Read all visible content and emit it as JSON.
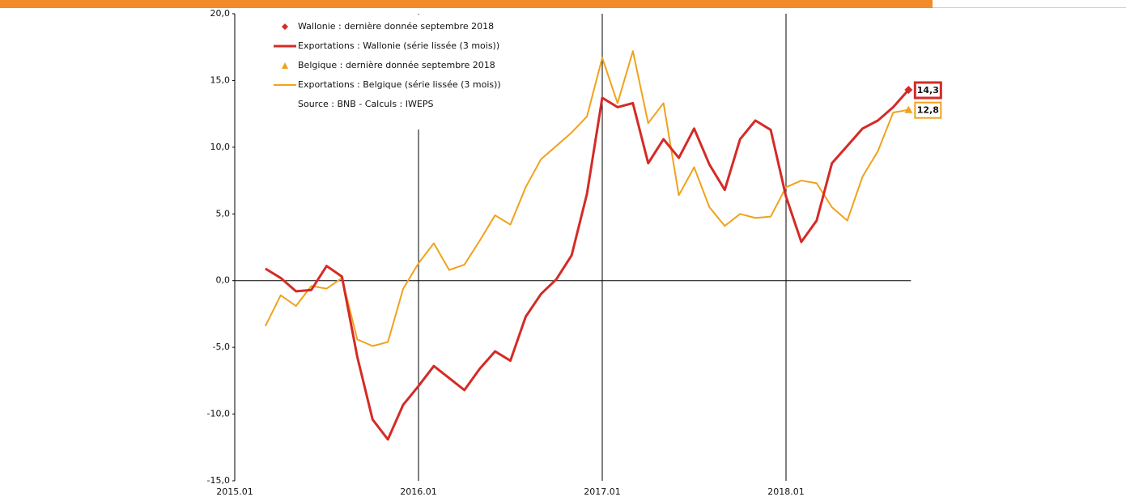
{
  "chart_data": {
    "type": "line",
    "categories": [
      "2015.01",
      null,
      null,
      null,
      null,
      null,
      null,
      null,
      null,
      null,
      null,
      null,
      "2016.01",
      null,
      null,
      null,
      null,
      null,
      null,
      null,
      null,
      null,
      null,
      null,
      "2017.01",
      null,
      null,
      null,
      null,
      null,
      null,
      null,
      null,
      null,
      null,
      null,
      "2018.01",
      null,
      null,
      null,
      null,
      null,
      null,
      null,
      null
    ],
    "ylim": [
      -15,
      20
    ],
    "yticks": [
      {
        "value": -15,
        "label": "-15,0"
      },
      {
        "value": -10,
        "label": "-10,0"
      },
      {
        "value": -5,
        "label": "-5,0"
      },
      {
        "value": 0,
        "label": "0,0"
      },
      {
        "value": 5,
        "label": "5,0"
      },
      {
        "value": 10,
        "label": "10,0"
      },
      {
        "value": 15,
        "label": "15,0"
      },
      {
        "value": 20,
        "label": "20,0"
      }
    ],
    "source": "Source : BNB - Calculs : IWEPS",
    "series": [
      {
        "name": "Wallonie : dernière donnée septembre 2018",
        "color": "#d42b27",
        "marker": "diamond",
        "values": [
          null,
          null,
          null,
          null,
          null,
          null,
          null,
          null,
          null,
          null,
          null,
          null,
          null,
          null,
          null,
          null,
          null,
          null,
          null,
          null,
          null,
          null,
          null,
          null,
          null,
          null,
          null,
          null,
          null,
          null,
          null,
          null,
          null,
          null,
          null,
          null,
          null,
          null,
          null,
          null,
          null,
          null,
          null,
          null,
          14.3
        ],
        "value_labels": [
          null,
          null,
          null,
          null,
          null,
          null,
          null,
          null,
          null,
          null,
          null,
          null,
          null,
          null,
          null,
          null,
          null,
          null,
          null,
          null,
          null,
          null,
          null,
          null,
          null,
          null,
          null,
          null,
          null,
          null,
          null,
          null,
          null,
          null,
          null,
          null,
          null,
          null,
          null,
          null,
          null,
          null,
          null,
          null,
          "14,3"
        ]
      },
      {
        "name": "Exportations : Wallonie (série lissée (3 mois))",
        "color": "#d42b27",
        "width": 3,
        "values": [
          null,
          null,
          0.9,
          0.2,
          -0.8,
          -0.7,
          1.1,
          0.3,
          -5.7,
          -10.4,
          -11.9,
          -9.3,
          -7.9,
          -6.4,
          -7.3,
          -8.2,
          -6.6,
          -5.3,
          -6.0,
          -2.7,
          -1.0,
          0.1,
          1.9,
          6.5,
          13.7,
          13.0,
          13.3,
          8.8,
          10.6,
          9.2,
          11.4,
          8.7,
          6.8,
          10.6,
          12.0,
          11.3,
          6.3,
          2.9,
          4.5,
          8.8,
          10.1,
          11.4,
          12.0,
          13.0,
          14.3
        ]
      },
      {
        "name": "Belgique : dernière donnée septembre 2018",
        "color": "#f0a21b",
        "marker": "triangle",
        "values": [
          null,
          null,
          null,
          null,
          null,
          null,
          null,
          null,
          null,
          null,
          null,
          null,
          null,
          null,
          null,
          null,
          null,
          null,
          null,
          null,
          null,
          null,
          null,
          null,
          null,
          null,
          null,
          null,
          null,
          null,
          null,
          null,
          null,
          null,
          null,
          null,
          null,
          null,
          null,
          null,
          null,
          null,
          null,
          null,
          12.8
        ],
        "value_labels": [
          null,
          null,
          null,
          null,
          null,
          null,
          null,
          null,
          null,
          null,
          null,
          null,
          null,
          null,
          null,
          null,
          null,
          null,
          null,
          null,
          null,
          null,
          null,
          null,
          null,
          null,
          null,
          null,
          null,
          null,
          null,
          null,
          null,
          null,
          null,
          null,
          null,
          null,
          null,
          null,
          null,
          null,
          null,
          null,
          "12,8"
        ]
      },
      {
        "name": "Exportations : Belgique (série lissée (3 mois))",
        "color": "#f0a21b",
        "width": 2,
        "values": [
          null,
          null,
          -3.4,
          -1.1,
          -1.9,
          -0.4,
          -0.6,
          0.2,
          -4.4,
          -4.9,
          -4.6,
          -0.6,
          1.3,
          2.8,
          0.8,
          1.2,
          3.0,
          4.9,
          4.2,
          7.0,
          9.1,
          10.1,
          11.1,
          12.3,
          16.7,
          13.3,
          17.2,
          11.8,
          13.3,
          6.4,
          8.5,
          5.5,
          4.1,
          5.0,
          4.7,
          4.8,
          7.0,
          7.5,
          7.3,
          5.5,
          4.5,
          7.8,
          9.7,
          12.6,
          12.8
        ]
      }
    ]
  }
}
